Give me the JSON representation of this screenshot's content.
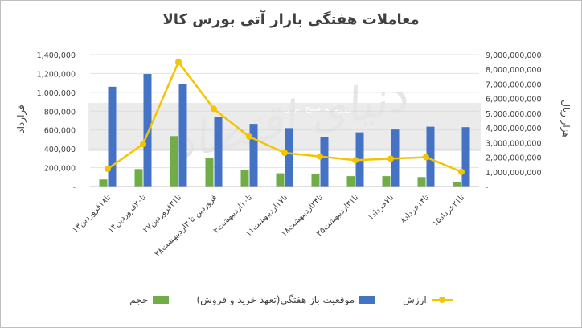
{
  "chart_data": {
    "type": "bar",
    "title": "معاملات هفتگی بازار آتی بورس کالا",
    "ylabel_left": "قرارداد",
    "ylabel_right": "هزار ریال",
    "ylim_left": [
      0,
      1400000
    ],
    "ylim_right": [
      0,
      9000000000
    ],
    "y_ticks_left": [
      "-",
      "200,000",
      "400,000",
      "600,000",
      "800,000",
      "1,000,000",
      "1,200,000",
      "1,400,000"
    ],
    "y_ticks_right": [
      "-",
      "1,000,000,000",
      "2,000,000,000",
      "3,000,000,000",
      "4,000,000,000",
      "5,000,000,000",
      "6,000,000,000",
      "7,000,000,000",
      "8,000,000,000",
      "9,000,000,000"
    ],
    "categories": [
      "۱۳تا۱۸فروردین",
      "۱۴تا۲۰فروردین",
      "۲۷تا۳۱فروردین",
      "۲۸فروردین تا ۳اردیبهشت",
      "۴تا۱۰اردیبهشت",
      "۱۱تا۱۷اردیبهشت",
      "۱۸تا۲۴اردیبهشت",
      "۲۵تا۳۱اردیبهشت",
      "۱تا۷خرداد",
      "۸تا۱۴خرداد",
      "۱۵تا۲۱خرداد"
    ],
    "series": [
      {
        "name": "حجم",
        "axis": "left",
        "kind": "bar",
        "color": "#70ad47",
        "values": [
          75000,
          185000,
          535000,
          305000,
          175000,
          140000,
          130000,
          110000,
          110000,
          100000,
          45000
        ]
      },
      {
        "name": "موقعیت باز هفتگی(تعهد خرید و فروش)",
        "axis": "left",
        "kind": "bar",
        "color": "#4472c4",
        "values": [
          1060000,
          1195000,
          1085000,
          740000,
          665000,
          620000,
          525000,
          575000,
          605000,
          635000,
          630000
        ]
      },
      {
        "name": "ارزش",
        "axis": "right",
        "kind": "line",
        "color": "#f2c500",
        "values": [
          1200000000,
          2900000000,
          8500000000,
          5300000000,
          3400000000,
          2300000000,
          2050000000,
          1800000000,
          1900000000,
          2000000000,
          1000000000
        ]
      }
    ],
    "grid": true,
    "legend_position": "bottom",
    "watermark_text": "دنیای اقتصاد",
    "watermark_banner": "روزنامه صبح ایران"
  }
}
